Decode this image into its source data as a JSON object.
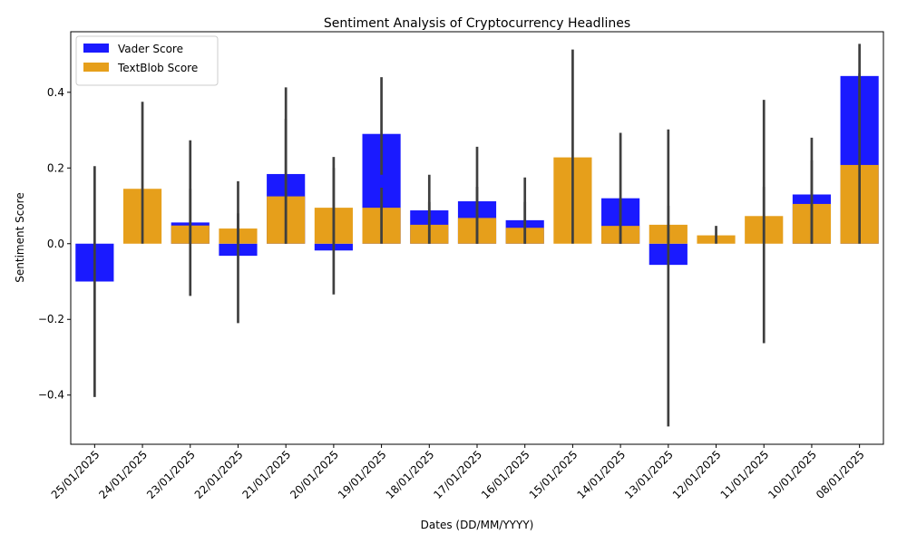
{
  "chart_data": {
    "type": "bar",
    "title": "Sentiment Analysis of Cryptocurrency Headlines",
    "xlabel": "Dates (DD/MM/YYYY)",
    "ylabel": "Sentiment Score",
    "ylim": [
      -0.53,
      0.56
    ],
    "yticks": [
      -0.4,
      -0.2,
      0.0,
      0.2,
      0.4
    ],
    "ytick_labels": [
      "−0.4",
      "−0.2",
      "0.0",
      "0.2",
      "0.4"
    ],
    "legend_position": "top-left",
    "grid": false,
    "categories": [
      "25/01/2025",
      "24/01/2025",
      "23/01/2025",
      "22/01/2025",
      "21/01/2025",
      "20/01/2025",
      "19/01/2025",
      "18/01/2025",
      "17/01/2025",
      "16/01/2025",
      "15/01/2025",
      "14/01/2025",
      "13/01/2025",
      "12/01/2025",
      "11/01/2025",
      "10/01/2025",
      "08/01/2025"
    ],
    "series": [
      {
        "name": "Vader Score",
        "color": "#1a1aff",
        "values": [
          -0.1,
          0.0,
          0.056,
          -0.032,
          0.184,
          -0.018,
          0.29,
          0.088,
          0.112,
          0.062,
          0.0,
          0.12,
          -0.056,
          0.0,
          0.0,
          0.13,
          0.443
        ],
        "ci": [
          [
            -0.405,
            0.205
          ],
          null,
          [
            -0.138,
            0.273
          ],
          [
            -0.21,
            0.165
          ],
          [
            0.0,
            0.413
          ],
          [
            -0.134,
            0.229
          ],
          [
            0.182,
            0.44
          ],
          [
            0.0,
            0.182
          ],
          [
            0.0,
            0.256
          ],
          [
            0.0,
            0.175
          ],
          null,
          [
            0.0,
            0.293
          ],
          [
            -0.483,
            0.302
          ],
          null,
          [
            -0.263,
            0.38
          ],
          [
            0.0,
            0.28
          ],
          [
            0.28,
            0.528
          ]
        ]
      },
      {
        "name": "TextBlob Score",
        "color": "#e69f1b",
        "values": [
          0.0,
          0.145,
          0.048,
          0.04,
          0.125,
          0.095,
          0.095,
          0.05,
          0.068,
          0.042,
          0.228,
          0.047,
          0.05,
          0.022,
          0.073,
          0.105,
          0.208
        ],
        "ci": [
          null,
          [
            0.0,
            0.375
          ],
          [
            0.0,
            0.145
          ],
          [
            0.0,
            0.08
          ],
          [
            0.0,
            0.33
          ],
          [
            0.0,
            0.2
          ],
          [
            0.0,
            0.148
          ],
          [
            0.0,
            0.11
          ],
          [
            0.0,
            0.15
          ],
          [
            0.0,
            0.11
          ],
          [
            0.0,
            0.513
          ],
          [
            0.0,
            0.12
          ],
          [
            0.0,
            0.1
          ],
          [
            0.0,
            0.047
          ],
          [
            0.0,
            0.15
          ],
          [
            0.0,
            0.22
          ],
          [
            0.0,
            0.45
          ]
        ]
      }
    ]
  }
}
